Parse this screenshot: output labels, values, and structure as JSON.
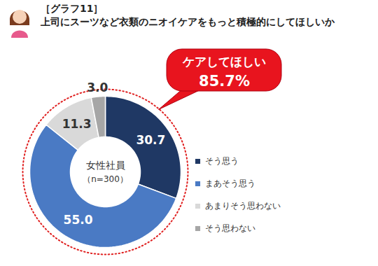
{
  "chart_data": {
    "type": "donut",
    "title": "［グラフ11］",
    "subtitle": "上司にスーツなど衣類のニオイケアをもっと積極的にしてほしいか",
    "categories": [
      "そう思う",
      "まあそう思う",
      "あまりそう思わない",
      "そう思わない"
    ],
    "values": [
      30.7,
      55.0,
      11.3,
      3.0
    ],
    "value_labels": [
      "30.7",
      "55.0",
      "11.3",
      "3.0"
    ],
    "colors": [
      "#1f3864",
      "#4a7ac4",
      "#d9d9d9",
      "#a6a6a6"
    ],
    "data_labels": true,
    "legend": "right",
    "center_text": [
      "女性社員",
      "（n=300）"
    ],
    "annotations": [
      "ケアしてほしい",
      "85.7%"
    ]
  }
}
